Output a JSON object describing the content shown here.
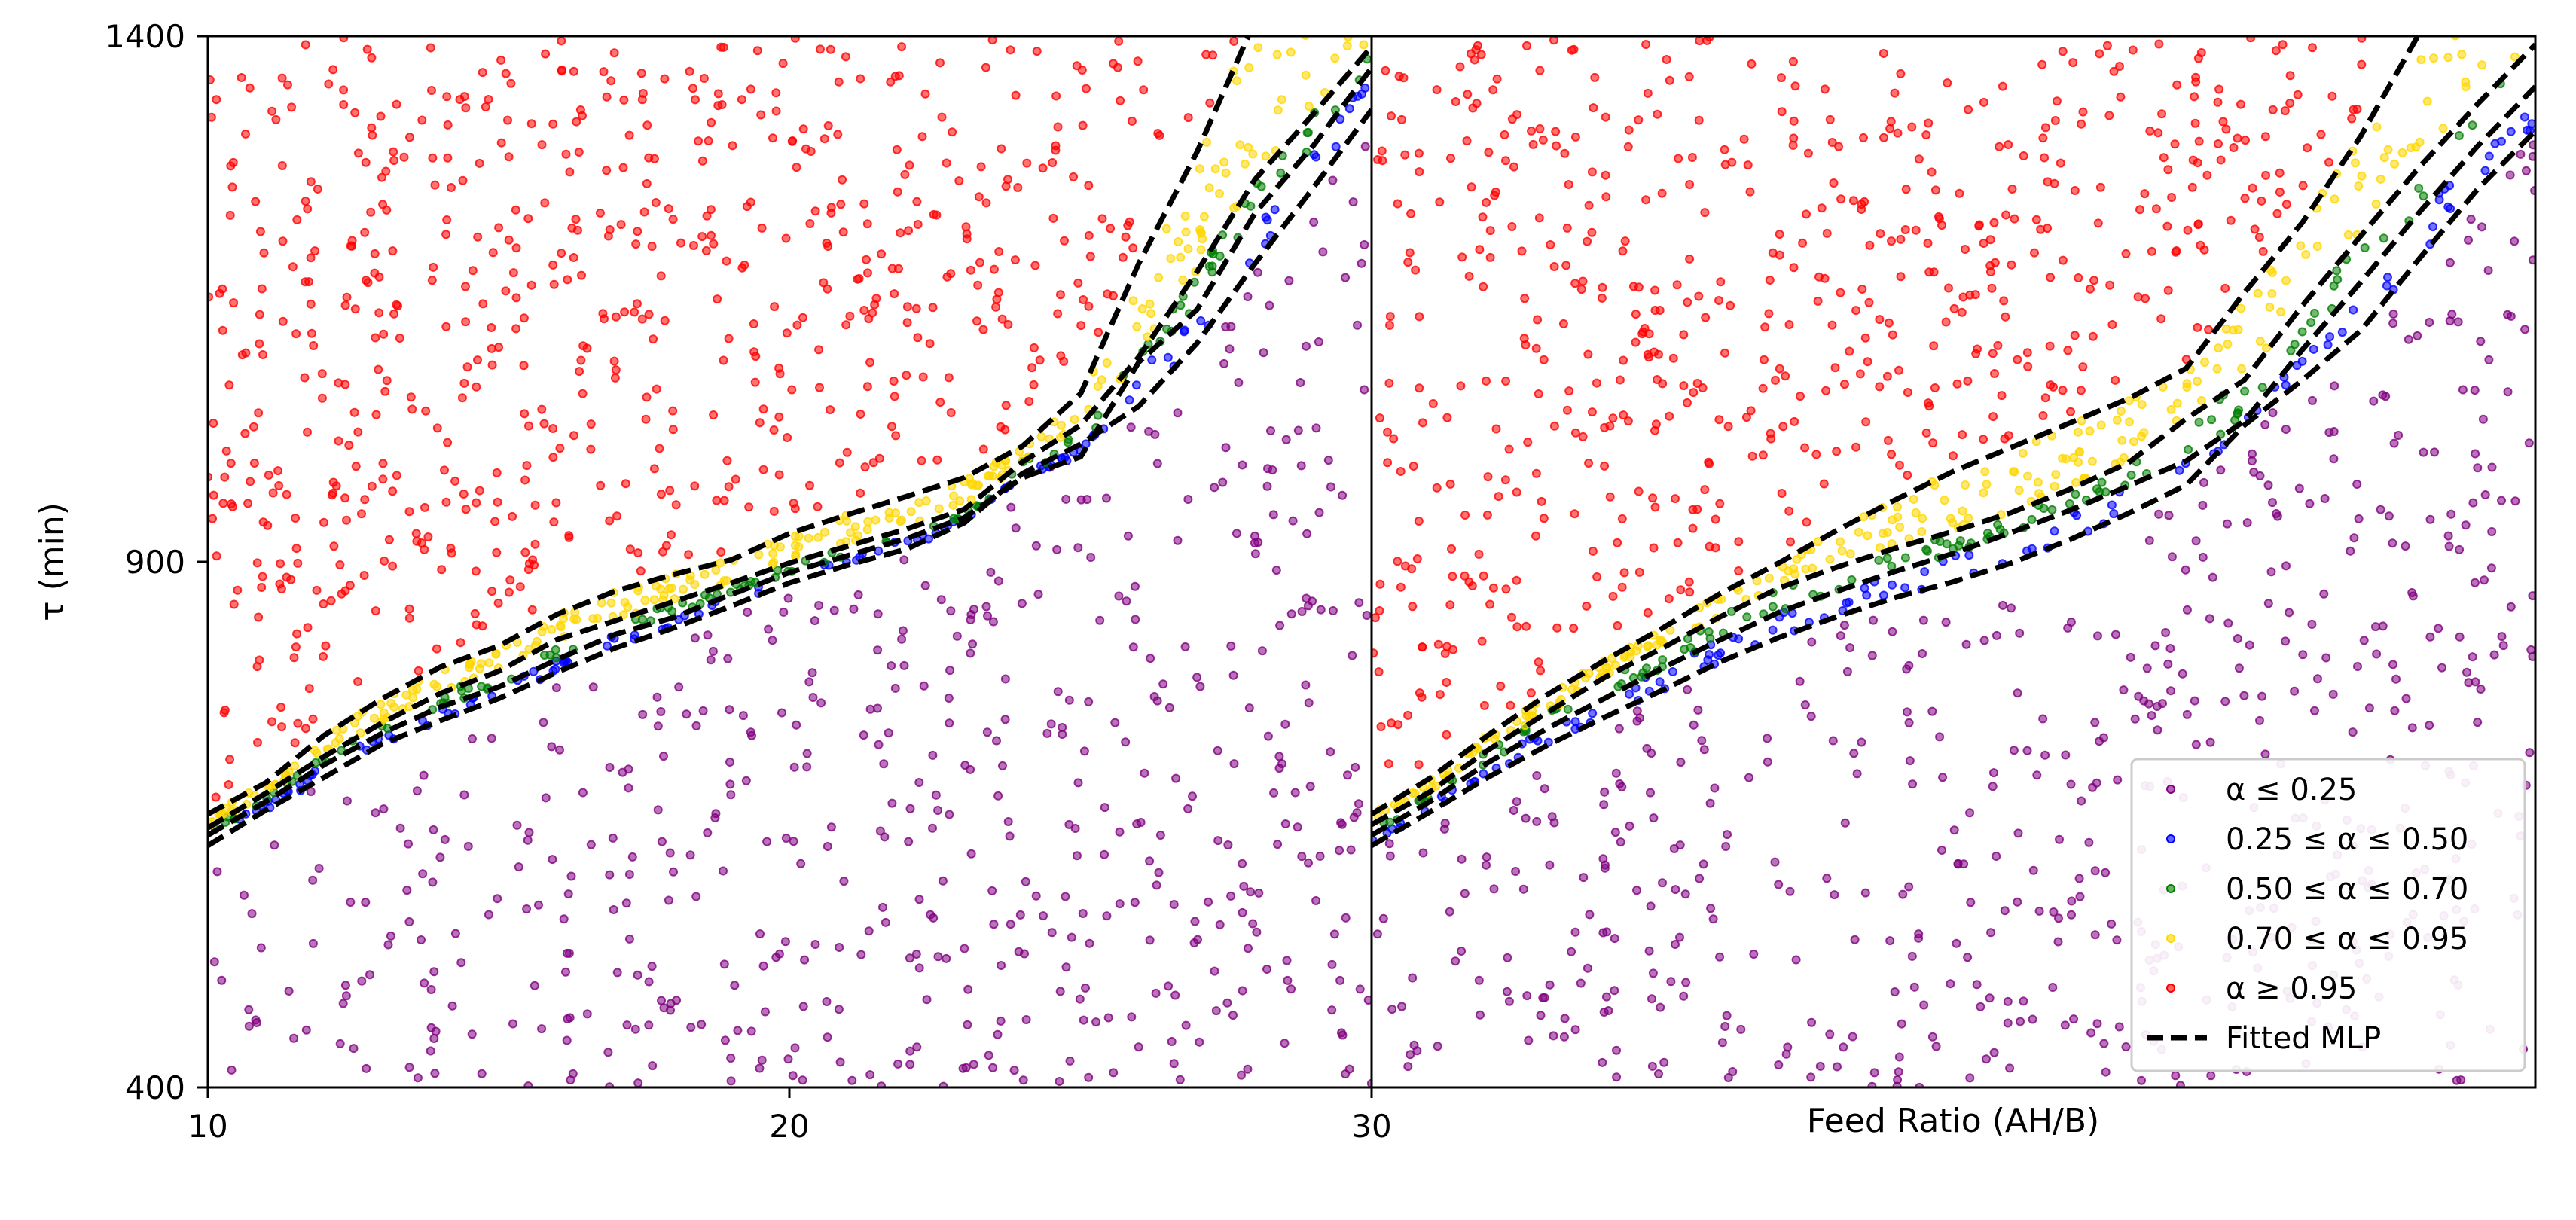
{
  "chart_data": [
    {
      "panel": "left",
      "type": "scatter",
      "xlim": [
        10,
        30
      ],
      "ylim": [
        400,
        1400
      ],
      "x_ticks": [
        "10",
        "20",
        "30"
      ],
      "y_ticks": [
        "400",
        "900",
        "1400"
      ],
      "ylabel": "τ (min)",
      "xlabel": "",
      "grid": false,
      "class_boundaries": {
        "x": [
          10,
          11,
          12,
          13,
          14,
          15,
          16,
          17,
          18,
          19,
          20,
          21,
          22,
          23,
          24,
          25,
          26,
          27,
          28,
          29,
          30
        ],
        "b1": [
          630,
          664,
          695,
          727,
          749,
          770,
          795,
          818,
          837,
          858,
          880,
          897,
          912,
          937,
          984,
          1012,
          1048,
          1108,
          1184,
          1256,
          1330
        ],
        "b2": [
          640,
          672,
          707,
          737,
          762,
          781,
          807,
          831,
          847,
          869,
          890,
          906,
          922,
          942,
          980,
          1000,
          1090,
          1140,
          1232,
          1296,
          1370
        ],
        "b3": [
          647,
          680,
          715,
          747,
          775,
          796,
          826,
          844,
          862,
          880,
          899,
          915,
          931,
          950,
          995,
          1030,
          1095,
          1176,
          1264,
          1326,
          1390
        ],
        "b4": [
          660,
          690,
          735,
          770,
          800,
          820,
          850,
          872,
          888,
          902,
          927,
          945,
          962,
          980,
          1010,
          1060,
          1184,
          1290,
          1415,
          1470,
          1490
        ]
      }
    },
    {
      "panel": "right",
      "type": "scatter",
      "xlim": [
        30,
        50
      ],
      "ylim": [
        400,
        1400
      ],
      "x_ticks": [],
      "y_ticks": [],
      "xlabel": "Feed Ratio (AH/B)",
      "ylabel": "",
      "grid": false,
      "legend_position": "lower-right",
      "class_boundaries": {
        "x": [
          30,
          31,
          32,
          33,
          34,
          35,
          36,
          37,
          38,
          39,
          40,
          41,
          42,
          43,
          44,
          45,
          46,
          47,
          48,
          49,
          50
        ],
        "b1": [
          630,
          662,
          695,
          725,
          752,
          778,
          805,
          828,
          848,
          866,
          881,
          899,
          921,
          946,
          973,
          1030,
          1073,
          1120,
          1188,
          1254,
          1310
        ],
        "b2": [
          640,
          672,
          709,
          741,
          770,
          799,
          826,
          852,
          872,
          891,
          908,
          928,
          949,
          972,
          996,
          1034,
          1102,
          1166,
          1232,
          1295,
          1352
        ],
        "b3": [
          650,
          681,
          721,
          756,
          790,
          818,
          848,
          875,
          895,
          913,
          929,
          947,
          969,
          994,
          1036,
          1073,
          1144,
          1210,
          1275,
          1335,
          1392
        ],
        "b4": [
          660,
          694,
          735,
          773,
          806,
          837,
          870,
          899,
          930,
          959,
          986,
          1009,
          1032,
          1055,
          1084,
          1156,
          1223,
          1305,
          1402,
          1470,
          1500
        ]
      }
    }
  ],
  "series": [
    {
      "name": "α ≤ 0.25",
      "color": "#800080"
    },
    {
      "name": "0.25 ≤ α ≤ 0.50",
      "color": "#0000ff"
    },
    {
      "name": "0.50 ≤ α ≤ 0.70",
      "color": "#008000"
    },
    {
      "name": "0.70 ≤ α ≤ 0.95",
      "color": "#ffd700"
    },
    {
      "name": "α ≥ 0.95",
      "color": "#ff0000"
    },
    {
      "name": "Fitted MLP",
      "color": "#000000"
    }
  ],
  "scatter_density": {
    "low_region": 1100,
    "high_region": 1500,
    "band_samples": 260
  },
  "legend": {
    "labels": [
      "α ≤ 0.25",
      "0.25 ≤ α ≤ 0.50",
      "0.50 ≤ α ≤ 0.70",
      "0.70 ≤ α ≤ 0.95",
      "α ≥ 0.95",
      "Fitted MLP"
    ]
  }
}
